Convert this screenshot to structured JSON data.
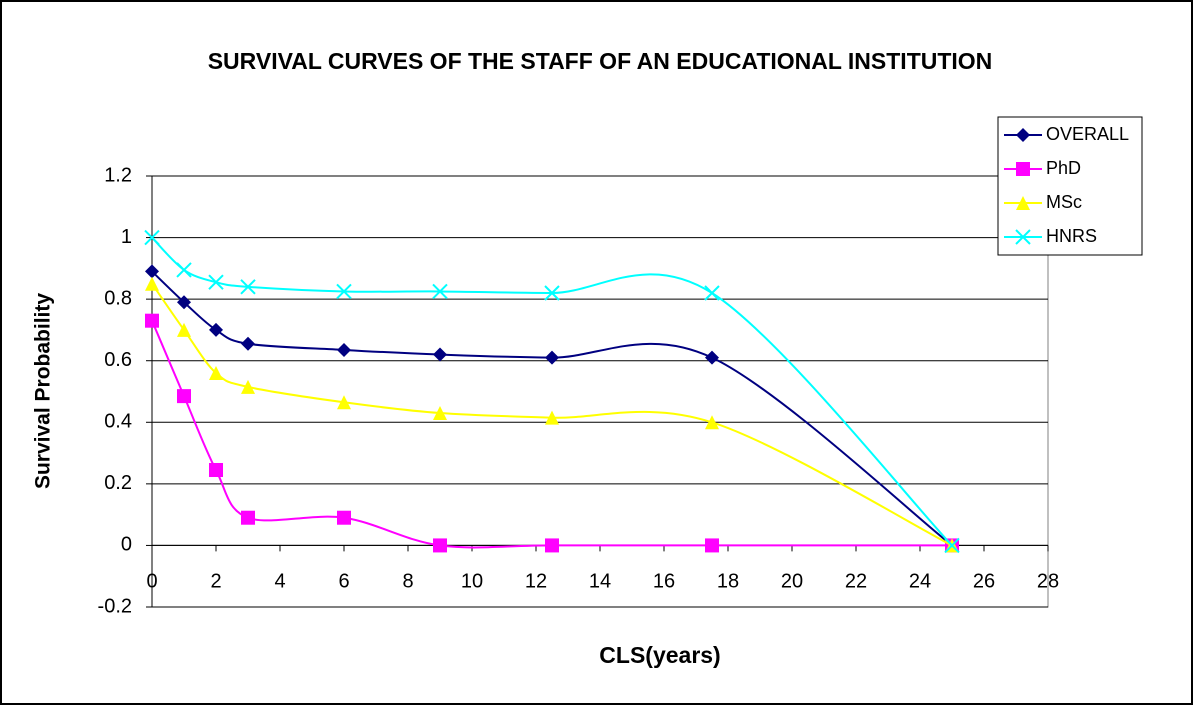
{
  "chart_data": {
    "type": "line",
    "title": "SURVIVAL CURVES OF THE STAFF OF AN EDUCATIONAL INSTITUTION",
    "x_label": "CLS(years)",
    "y_label": "Survival Probability",
    "x": [
      0,
      1,
      2,
      3,
      6,
      9,
      12.5,
      17.5,
      25
    ],
    "series": [
      {
        "name": "OVERALL",
        "color": "#000080",
        "marker": "diamond",
        "values": [
          0.89,
          0.79,
          0.7,
          0.655,
          0.635,
          0.62,
          0.61,
          0.61,
          0
        ]
      },
      {
        "name": "PhD",
        "color": "#ff00ff",
        "marker": "square",
        "values": [
          0.73,
          0.485,
          0.245,
          0.09,
          0.09,
          0,
          0,
          0,
          0
        ]
      },
      {
        "name": "MSc",
        "color": "#ffff00",
        "marker": "triangle",
        "values": [
          0.85,
          0.7,
          0.56,
          0.515,
          0.465,
          0.43,
          0.415,
          0.4,
          0
        ]
      },
      {
        "name": "HNRS",
        "color": "#00ffff",
        "marker": "x",
        "values": [
          1.0,
          0.895,
          0.855,
          0.84,
          0.825,
          0.825,
          0.82,
          0.82,
          0
        ]
      }
    ],
    "xlim": [
      0,
      28
    ],
    "xticks": [
      0,
      2,
      4,
      6,
      8,
      10,
      12,
      14,
      16,
      18,
      20,
      22,
      24,
      26,
      28
    ],
    "ylim": [
      -0.2,
      1.2
    ],
    "yticks": [
      -0.2,
      0,
      0.2,
      0.4,
      0.6,
      0.8,
      1,
      1.2
    ],
    "grid": true,
    "smooth": true,
    "legend": "top-right"
  }
}
